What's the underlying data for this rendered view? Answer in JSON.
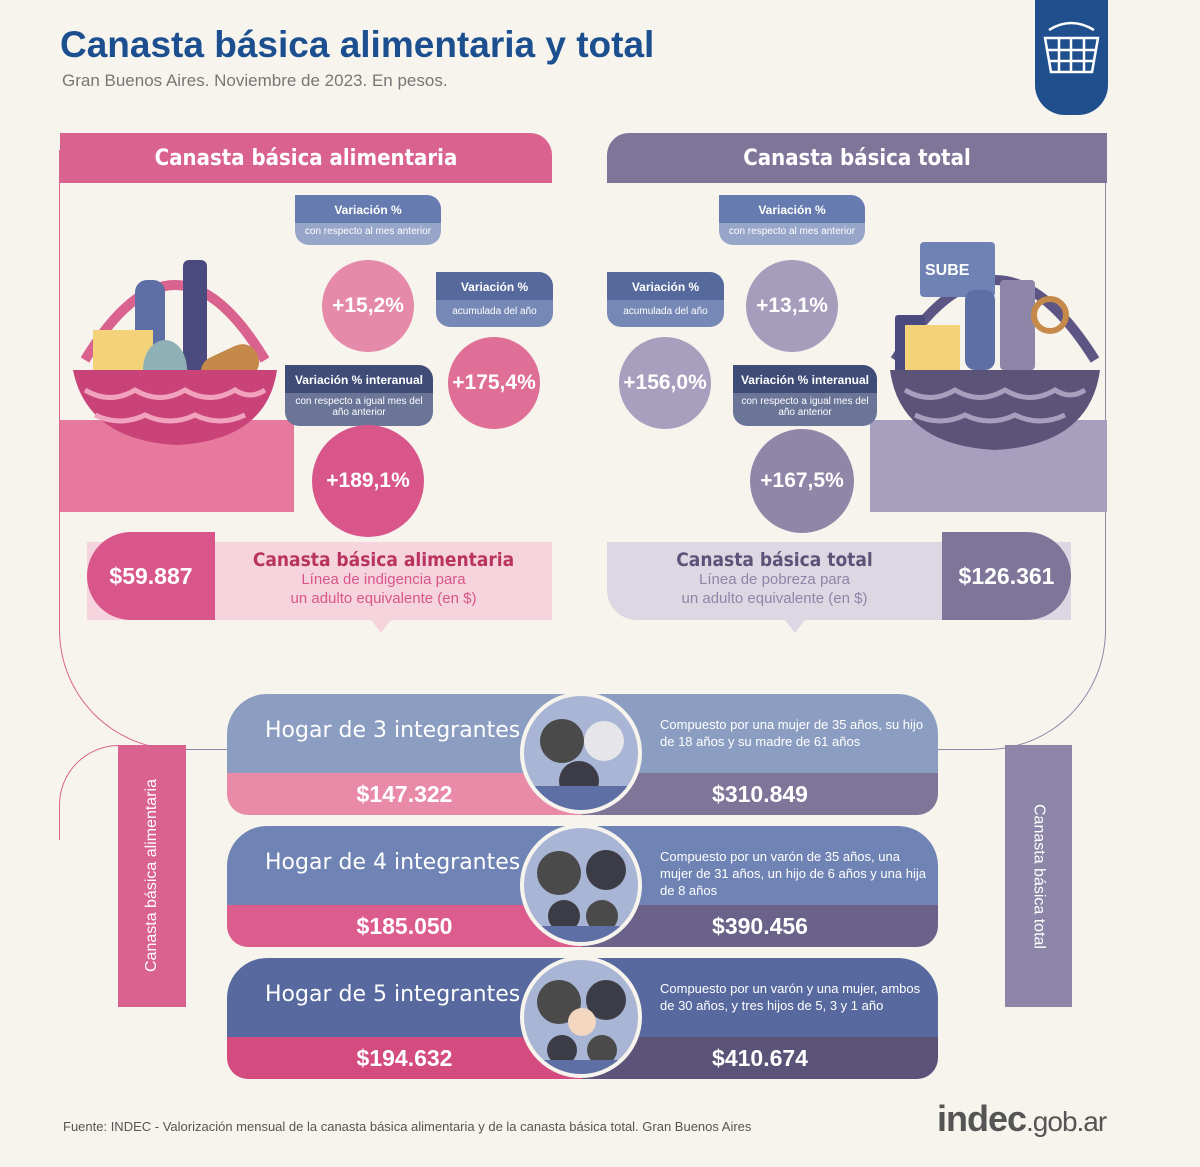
{
  "header": {
    "title": "Canasta básica alimentaria y total",
    "subtitle": "Gran Buenos Aires. Noviembre de 2023. En pesos."
  },
  "logo_icon": "shopping-basket-icon",
  "cba": {
    "title": "Canasta básica alimentaria",
    "var_mes": {
      "h": "Variación %",
      "s": "con respecto al mes anterior",
      "v": "+15,2%"
    },
    "var_acum": {
      "h": "Variación %",
      "s": "acumulada del año",
      "v": "+175,4%"
    },
    "var_inter": {
      "h": "Variación % interanual",
      "s": "con respecto a igual mes del año anterior",
      "v": "+189,1%"
    },
    "price": "$59.887",
    "price_title": "Canasta básica alimentaria",
    "price_desc1": "Línea de indigencia para",
    "price_desc2": "un adulto equivalente (en $)"
  },
  "cbt": {
    "title": "Canasta básica total",
    "var_mes": {
      "h": "Variación %",
      "s": "con respecto al mes anterior",
      "v": "+13,1%"
    },
    "var_acum": {
      "h": "Variación %",
      "s": "acumulada del año",
      "v": "+156,0%"
    },
    "var_inter": {
      "h": "Variación % interanual",
      "s": "con respecto a igual mes del año anterior",
      "v": "+167,5%"
    },
    "price": "$126.361",
    "price_title": "Canasta básica total",
    "price_desc1": "Línea de pobreza para",
    "price_desc2": "un adulto equivalente (en $)",
    "sube_label": "SUBE"
  },
  "side": {
    "left": "Canasta básica alimentaria",
    "right": "Canasta básica total"
  },
  "households": [
    {
      "label": "Hogar de 3 integrantes",
      "desc": "Compuesto por una mujer de 35 años, su hijo de 18 años y su madre de 61 años",
      "cba": "$147.322",
      "cbt": "$310.849"
    },
    {
      "label": "Hogar de 4 integrantes",
      "desc": "Compuesto por un varón de 35 años, una mujer de 31 años, un hijo de 6 años y una hija de 8 años",
      "cba": "$185.050",
      "cbt": "$390.456"
    },
    {
      "label": "Hogar de 5 integrantes",
      "desc": "Compuesto por un varón y una mujer, ambos de 30 años, y tres hijos de 5, 3 y 1 año",
      "cba": "$194.632",
      "cbt": "$410.674"
    }
  ],
  "footer": {
    "source": "Fuente: INDEC - Valorización mensual de la canasta básica alimentaria y de la canasta básica total. Gran Buenos Aires",
    "brand": "indec",
    "brand_suffix": ".gob.ar"
  },
  "colors": {
    "title": "#1b4f8f",
    "pink": "#d9628e",
    "purple": "#7e7599",
    "bg": "#f7f4ed"
  }
}
